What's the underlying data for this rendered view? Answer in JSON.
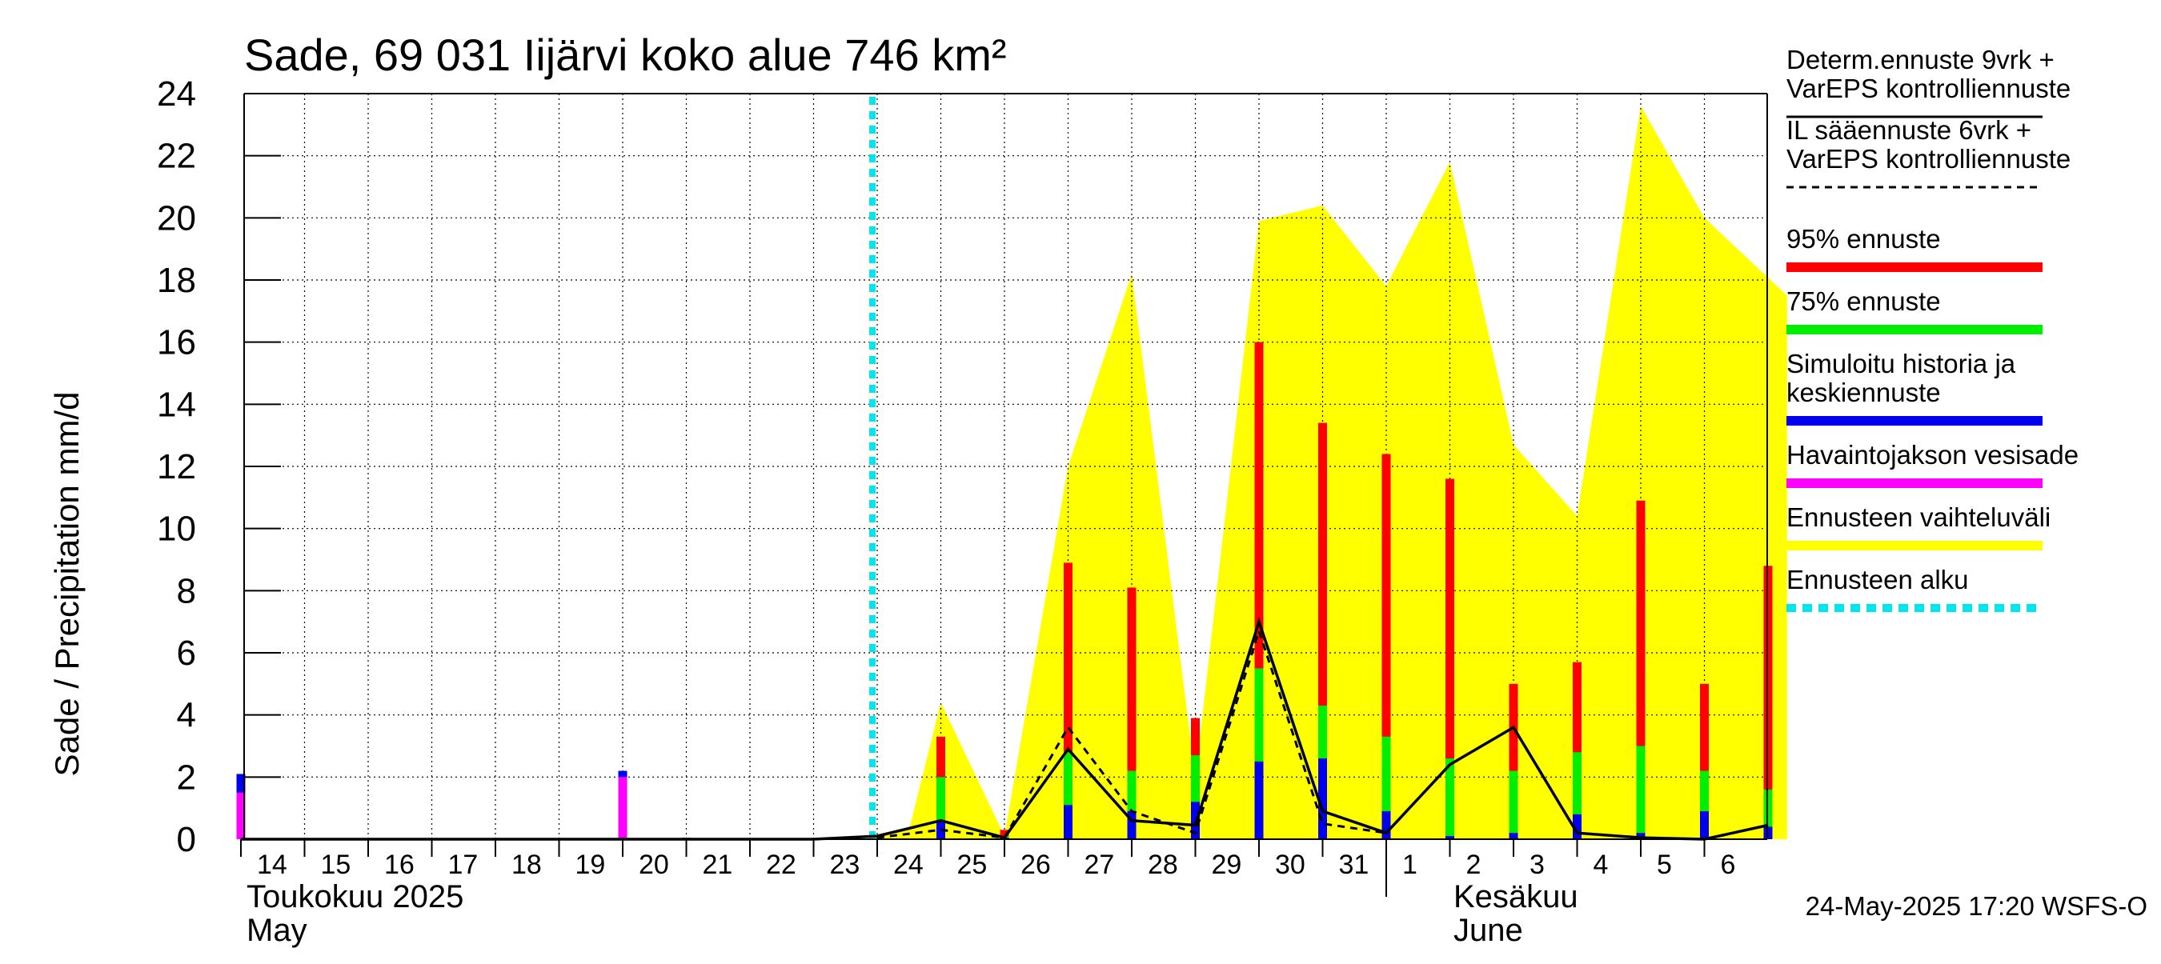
{
  "chart_data": {
    "type": "bar",
    "title": "Sade, 69 031 Iijärvi koko alue 746 km²",
    "ylabel": "Sade / Precipitation   mm/d",
    "ylim": [
      0,
      24
    ],
    "yticks": [
      0,
      2,
      4,
      6,
      8,
      10,
      12,
      14,
      16,
      18,
      20,
      22,
      24
    ],
    "days": [
      "14",
      "15",
      "16",
      "17",
      "18",
      "19",
      "20",
      "21",
      "22",
      "23",
      "24",
      "25",
      "26",
      "27",
      "28",
      "29",
      "30",
      "31",
      "1",
      "2",
      "3",
      "4",
      "5",
      "6"
    ],
    "x_start_day": 14,
    "month_labels": {
      "may_fi": "Toukokuu  2025",
      "may_en": "May",
      "june_fi": "Kesäkuu",
      "june_en": "June"
    },
    "forecast_start_day": 24,
    "observed": [
      {
        "day": 14,
        "value": 1.5
      },
      {
        "day": 20,
        "value": 2.0
      },
      {
        "day": 21,
        "value": 0.05
      }
    ],
    "simulated_history": [
      {
        "day": 14,
        "value": 2.1
      },
      {
        "day": 20,
        "value": 2.2
      }
    ],
    "bars": [
      {
        "day": 25,
        "p95": 3.3,
        "p75": 2.0,
        "median": 0.6
      },
      {
        "day": 26,
        "p95": 0.3,
        "p75": 0.1,
        "median": 0.05
      },
      {
        "day": 27,
        "p95": 8.9,
        "p75": 2.8,
        "median": 1.1
      },
      {
        "day": 28,
        "p95": 8.1,
        "p75": 2.2,
        "median": 0.9
      },
      {
        "day": 29,
        "p95": 3.9,
        "p75": 2.7,
        "median": 1.2
      },
      {
        "day": 30,
        "p95": 16.0,
        "p75": 5.5,
        "median": 2.5
      },
      {
        "day": 31,
        "p95": 13.4,
        "p75": 4.3,
        "median": 2.6
      },
      {
        "day": 32,
        "p95": 12.4,
        "p75": 3.3,
        "median": 0.9
      },
      {
        "day": 33,
        "p95": 11.6,
        "p75": 2.6,
        "median": 0.1
      },
      {
        "day": 34,
        "p95": 5.0,
        "p75": 2.2,
        "median": 0.2
      },
      {
        "day": 35,
        "p95": 5.7,
        "p75": 2.8,
        "median": 0.8
      },
      {
        "day": 36,
        "p95": 10.9,
        "p75": 3.0,
        "median": 0.2
      },
      {
        "day": 37,
        "p95": 5.0,
        "p75": 2.2,
        "median": 0.9
      },
      {
        "day": 38,
        "p95": 8.8,
        "p75": 1.6,
        "median": 0.4
      }
    ],
    "range_band": [
      {
        "day": 23.8,
        "value": 0
      },
      {
        "day": 24.5,
        "value": 0.3
      },
      {
        "day": 25,
        "value": 4.4
      },
      {
        "day": 26,
        "value": 0.1
      },
      {
        "day": 27,
        "value": 12
      },
      {
        "day": 28,
        "value": 18.2
      },
      {
        "day": 29,
        "value": 2.0
      },
      {
        "day": 30,
        "value": 19.9
      },
      {
        "day": 31,
        "value": 20.4
      },
      {
        "day": 32,
        "value": 17.8
      },
      {
        "day": 33,
        "value": 21.8
      },
      {
        "day": 34,
        "value": 12.7
      },
      {
        "day": 35,
        "value": 10.4
      },
      {
        "day": 36,
        "value": 23.6
      },
      {
        "day": 37,
        "value": 20.0
      },
      {
        "day": 38.3,
        "value": 17.5
      }
    ],
    "determ_line": [
      {
        "day": 14,
        "value": 0
      },
      {
        "day": 15,
        "value": 0
      },
      {
        "day": 16,
        "value": 0
      },
      {
        "day": 17,
        "value": 0
      },
      {
        "day": 18,
        "value": 0
      },
      {
        "day": 19,
        "value": 0
      },
      {
        "day": 20,
        "value": 0
      },
      {
        "day": 21,
        "value": 0
      },
      {
        "day": 22,
        "value": 0
      },
      {
        "day": 23,
        "value": 0
      },
      {
        "day": 24,
        "value": 0.1
      },
      {
        "day": 25,
        "value": 0.6
      },
      {
        "day": 26,
        "value": 0.05
      },
      {
        "day": 27,
        "value": 2.9
      },
      {
        "day": 28,
        "value": 0.6
      },
      {
        "day": 29,
        "value": 0.45
      },
      {
        "day": 30,
        "value": 7.0
      },
      {
        "day": 31,
        "value": 0.9
      },
      {
        "day": 32,
        "value": 0.2
      },
      {
        "day": 33,
        "value": 2.4
      },
      {
        "day": 34,
        "value": 3.6
      },
      {
        "day": 35,
        "value": 0.2
      },
      {
        "day": 36,
        "value": 0.05
      },
      {
        "day": 37,
        "value": 0
      },
      {
        "day": 38,
        "value": 0.45
      }
    ],
    "il_line": [
      {
        "day": 24,
        "value": 0.05
      },
      {
        "day": 25,
        "value": 0.3
      },
      {
        "day": 26,
        "value": 0.05
      },
      {
        "day": 27,
        "value": 3.6
      },
      {
        "day": 28,
        "value": 0.9
      },
      {
        "day": 29,
        "value": 0.2
      },
      {
        "day": 30,
        "value": 6.7
      },
      {
        "day": 31,
        "value": 0.5
      },
      {
        "day": 32,
        "value": 0.2
      }
    ],
    "legend": [
      {
        "label": "Determ.ennuste 9vrk +\nVarEPS kontrolliennuste",
        "style": "solid-black"
      },
      {
        "label": "IL sääennuste 6vrk  +\n  VarEPS kontrolliennuste",
        "style": "dashed-black"
      },
      {
        "label": "95% ennuste",
        "color": "#ff0000"
      },
      {
        "label": "75% ennuste",
        "color": "#00ee00"
      },
      {
        "label": "Simuloitu historia ja\nkeskiennuste",
        "color": "#0000ee"
      },
      {
        "label": "Havaintojakson vesisade",
        "color": "#ff00ff"
      },
      {
        "label": "Ennusteen vaihteluväli",
        "color": "#ffff00"
      },
      {
        "label": "Ennusteen alku",
        "color": "#00e5ee",
        "style": "dashed"
      }
    ],
    "colors": {
      "p95": "#ff0000",
      "p75": "#00ee00",
      "median": "#0000ee",
      "observed": "#ff00ff",
      "range": "#ffff00",
      "forecast_start": "#00e5ee"
    }
  },
  "footer": "24-May-2025 17:20 WSFS-O"
}
